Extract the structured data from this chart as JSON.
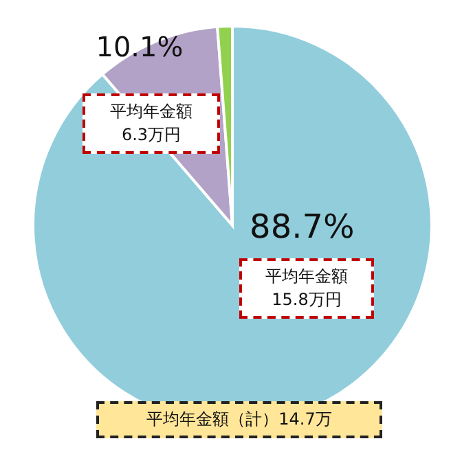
{
  "chart_data": {
    "type": "pie",
    "categories": [
      null,
      null,
      null
    ],
    "values": [
      88.7,
      10.1,
      1.2
    ],
    "colors": [
      "#92cddc",
      "#b3a2c7",
      "#92d050"
    ],
    "value_labels": [
      "88.7%",
      "10.1%",
      null
    ],
    "annotations": [
      "平均年金額\n15.8万円",
      "平均年金額\n6.3万円",
      "平均年金額（計）14.7万"
    ]
  }
}
